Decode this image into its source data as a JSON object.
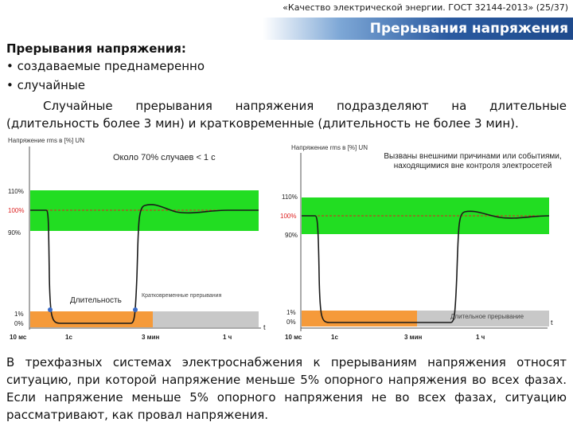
{
  "header": {
    "top_caption": "«Качество электрической энергии. ГОСТ 32144-2013» (25/37)",
    "slide_title": "Прерывания напряжения"
  },
  "content": {
    "heading": "Прерывания напряжения:",
    "bullets": [
      "• создаваемые преднамеренно",
      "• случайные"
    ],
    "para1": "Случайные прерывания напряжения подразделяют на длительные (длительность более 3 мин) и кратковременные (длительность не более 3 мин).",
    "para2": "В трехфазных системах электроснабжения к прерываниям напряжения относят ситуацию, при которой напряжение меньше 5% опорного напряжения во всех фазах. Если напряжение меньше 5% опорного напряжения не во всех фазах, ситуацию рассматривают, как провал напряжения."
  },
  "colors": {
    "green_band": "#22dd22",
    "orange_band": "#f59a3a",
    "gray_band": "#c8c8c8",
    "curve": "#1a1a1a",
    "red_label": "#dd2222",
    "title_blue": "#1e4a8c"
  },
  "chart_data": [
    {
      "type": "line",
      "ylabel": "Напряжение rms в [%] UN",
      "annotation": "Около 70% случаев < 1 с",
      "y_ticks": [
        "110%",
        "100%",
        "90%",
        "1%",
        "0%"
      ],
      "x_ticks": [
        "10 мс",
        "1с",
        "3 мин",
        "1 ч"
      ],
      "x_axis_label": "t",
      "band_labels": [
        "Длительность",
        "Кратковременные прерывания"
      ]
    },
    {
      "type": "line",
      "ylabel": "Напряжение rms в [%] UN",
      "annotation": "Вызваны внешними причинами или событиями, находящимися вне контроля электросетей",
      "y_ticks": [
        "110%",
        "100%",
        "90%",
        "1%",
        "0%"
      ],
      "x_ticks": [
        "10 мс",
        "1с",
        "3 мин",
        "1 ч"
      ],
      "x_axis_label": "t",
      "band_labels": [
        "Длительное прерывание"
      ]
    }
  ]
}
